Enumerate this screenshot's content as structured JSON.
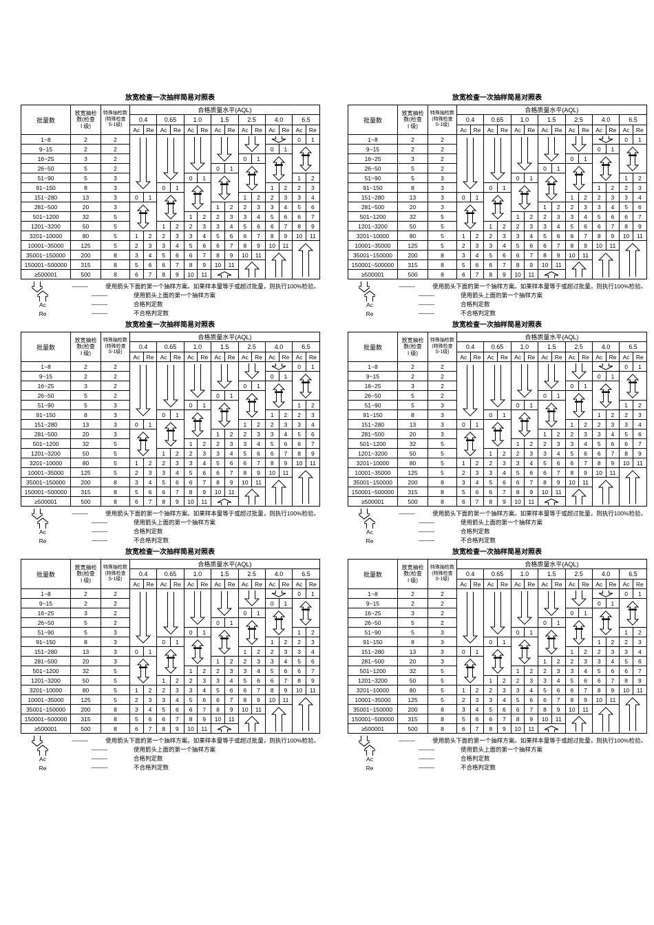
{
  "page": {
    "background": "#ffffff",
    "copies": 6
  },
  "table": {
    "title": "放宽检查一次抽样简易对照表",
    "header": {
      "lot_label": "批量数",
      "relaxed_label_lines": [
        "放宽抽检",
        "数(检查",
        "I 级)"
      ],
      "special_label_lines": [
        "特殊抽检数",
        "(特殊检查",
        "S-1级)"
      ],
      "aql_title": "合格质量水平(AQL)",
      "aql_levels": [
        "0.4",
        "0.65",
        "1.0",
        "1.5",
        "2.5",
        "4.0",
        "6.5"
      ],
      "ac_label": "Ac",
      "re_label": "Re"
    },
    "rows": [
      {
        "lot": "1~8",
        "relaxed_n": "2",
        "special_n": "2"
      },
      {
        "lot": "9~15",
        "relaxed_n": "2",
        "special_n": "2"
      },
      {
        "lot": "16~25",
        "relaxed_n": "3",
        "special_n": "2"
      },
      {
        "lot": "26~50",
        "relaxed_n": "5",
        "special_n": "2"
      },
      {
        "lot": "51~90",
        "relaxed_n": "5",
        "special_n": "3"
      },
      {
        "lot": "91~150",
        "relaxed_n": "8",
        "special_n": "3"
      },
      {
        "lot": "151~280",
        "relaxed_n": "13",
        "special_n": "3"
      },
      {
        "lot": "281~500",
        "relaxed_n": "20",
        "special_n": "3"
      },
      {
        "lot": "501~1200",
        "relaxed_n": "32",
        "special_n": "5"
      },
      {
        "lot": "1201~3200",
        "relaxed_n": "50",
        "special_n": "5"
      },
      {
        "lot": "3201~10000",
        "relaxed_n": "80",
        "special_n": "5"
      },
      {
        "lot": "10001~35000",
        "relaxed_n": "125",
        "special_n": "5"
      },
      {
        "lot": "35001~150000",
        "relaxed_n": "200",
        "special_n": "8"
      },
      {
        "lot": "150001~500000",
        "relaxed_n": "315",
        "special_n": "8"
      },
      {
        "lot": "≥500001",
        "relaxed_n": "500",
        "special_n": "8"
      }
    ],
    "aql_columns": [
      {
        "level": "0.4",
        "cells": [
          {
            "type": "down-arrow",
            "span": 6
          },
          {
            "type": "values",
            "ac": "0",
            "re": "1"
          },
          {
            "type": "double-arrow",
            "span": 3
          },
          {
            "type": "values",
            "ac": "1",
            "re": "2"
          },
          {
            "type": "values",
            "ac": "2",
            "re": "3"
          },
          {
            "type": "values",
            "ac": "3",
            "re": "4"
          },
          {
            "type": "values",
            "ac": "5",
            "re": "6"
          },
          {
            "type": "values",
            "ac": "6",
            "re": "7"
          }
        ]
      },
      {
        "level": "0.65",
        "cells": [
          {
            "type": "down-arrow",
            "span": 5
          },
          {
            "type": "values",
            "ac": "0",
            "re": "1"
          },
          {
            "type": "double-arrow",
            "span": 3
          },
          {
            "type": "values",
            "ac": "1",
            "re": "2"
          },
          {
            "type": "values",
            "ac": "2",
            "re": "3"
          },
          {
            "type": "values",
            "ac": "3",
            "re": "4"
          },
          {
            "type": "values",
            "ac": "5",
            "re": "6"
          },
          {
            "type": "values",
            "ac": "6",
            "re": "7"
          },
          {
            "type": "values",
            "ac": "8",
            "re": "9"
          }
        ]
      },
      {
        "level": "1.0",
        "cells": [
          {
            "type": "down-arrow",
            "span": 4
          },
          {
            "type": "values",
            "ac": "0",
            "re": "1"
          },
          {
            "type": "double-arrow",
            "span": 3
          },
          {
            "type": "values",
            "ac": "1",
            "re": "2"
          },
          {
            "type": "values",
            "ac": "2",
            "re": "3"
          },
          {
            "type": "values",
            "ac": "3",
            "re": "4"
          },
          {
            "type": "values",
            "ac": "5",
            "re": "6"
          },
          {
            "type": "values",
            "ac": "6",
            "re": "7"
          },
          {
            "type": "values",
            "ac": "8",
            "re": "9"
          },
          {
            "type": "values",
            "ac": "10",
            "re": "11"
          }
        ]
      },
      {
        "level": "1.5",
        "cells": [
          {
            "type": "down-arrow",
            "span": 3
          },
          {
            "type": "values",
            "ac": "0",
            "re": "1"
          },
          {
            "type": "double-arrow",
            "span": 3
          },
          {
            "type": "values",
            "ac": "1",
            "re": "2"
          },
          {
            "type": "values",
            "ac": "2",
            "re": "3"
          },
          {
            "type": "values",
            "ac": "3",
            "re": "4"
          },
          {
            "type": "values",
            "ac": "5",
            "re": "6"
          },
          {
            "type": "values",
            "ac": "6",
            "re": "7"
          },
          {
            "type": "values",
            "ac": "8",
            "re": "9"
          },
          {
            "type": "values",
            "ac": "10",
            "re": "11"
          },
          {
            "type": "up-arrow",
            "span": 1
          }
        ]
      },
      {
        "level": "2.5",
        "cells": [
          {
            "type": "down-arrow",
            "span": 2
          },
          {
            "type": "values",
            "ac": "0",
            "re": "1"
          },
          {
            "type": "double-arrow",
            "span": 3
          },
          {
            "type": "values",
            "ac": "1",
            "re": "2"
          },
          {
            "type": "values",
            "ac": "2",
            "re": "3"
          },
          {
            "type": "values",
            "ac": "3",
            "re": "4"
          },
          {
            "type": "values",
            "ac": "5",
            "re": "6"
          },
          {
            "type": "values",
            "ac": "6",
            "re": "7"
          },
          {
            "type": "values",
            "ac": "8",
            "re": "9"
          },
          {
            "type": "values",
            "ac": "10",
            "re": "11"
          },
          {
            "type": "up-arrow",
            "span": 2
          }
        ]
      },
      {
        "level": "4.0",
        "cells": [
          {
            "type": "down-arrow",
            "span": 1
          },
          {
            "type": "values",
            "ac": "0",
            "re": "1"
          },
          {
            "type": "double-arrow",
            "span": 3
          },
          {
            "type": "values",
            "ac": "1",
            "re": "2"
          },
          {
            "type": "values",
            "ac": "2",
            "re": "3"
          },
          {
            "type": "values",
            "ac": "3",
            "re": "4"
          },
          {
            "type": "values",
            "ac": "5",
            "re": "6"
          },
          {
            "type": "values",
            "ac": "6",
            "re": "7"
          },
          {
            "type": "values",
            "ac": "8",
            "re": "9"
          },
          {
            "type": "values",
            "ac": "10",
            "re": "11"
          },
          {
            "type": "up-arrow",
            "span": 3
          }
        ]
      },
      {
        "level": "6.5",
        "cells": [
          {
            "type": "values",
            "ac": "0",
            "re": "1"
          },
          {
            "type": "double-arrow",
            "span": 3
          },
          {
            "type": "values",
            "ac": "1",
            "re": "2"
          },
          {
            "type": "values",
            "ac": "2",
            "re": "3"
          },
          {
            "type": "values",
            "ac": "3",
            "re": "4"
          },
          {
            "type": "values",
            "ac": "5",
            "re": "6"
          },
          {
            "type": "values",
            "ac": "6",
            "re": "7"
          },
          {
            "type": "values",
            "ac": "8",
            "re": "9"
          },
          {
            "type": "values",
            "ac": "10",
            "re": "11"
          },
          {
            "type": "up-arrow",
            "span": 4
          }
        ]
      }
    ],
    "legend": [
      {
        "symbol": "down-arrow",
        "separator": "———",
        "text": "使用箭头下面的第一个抽样方案。如果样本量等于或超过批量，则执行100%检验。"
      },
      {
        "symbol": "up-arrow",
        "separator": "———",
        "text": "使用箭头上面的第一个抽样方案"
      },
      {
        "symbol": "Ac",
        "separator": "———",
        "text": "合格判定数"
      },
      {
        "symbol": "Re",
        "separator": "———",
        "text": "不合格判定数"
      }
    ]
  }
}
